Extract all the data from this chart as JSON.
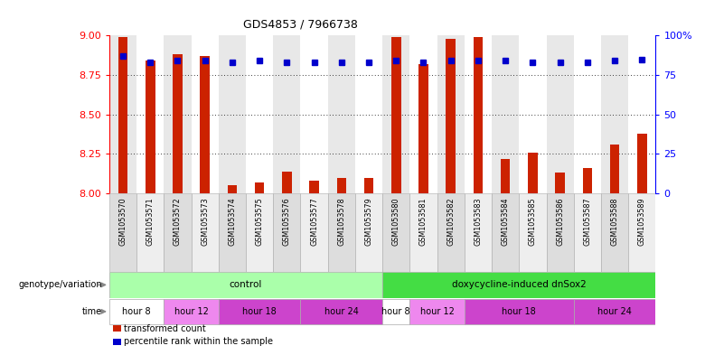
{
  "title": "GDS4853 / 7966738",
  "samples": [
    "GSM1053570",
    "GSM1053571",
    "GSM1053572",
    "GSM1053573",
    "GSM1053574",
    "GSM1053575",
    "GSM1053576",
    "GSM1053577",
    "GSM1053578",
    "GSM1053579",
    "GSM1053580",
    "GSM1053581",
    "GSM1053582",
    "GSM1053583",
    "GSM1053584",
    "GSM1053585",
    "GSM1053586",
    "GSM1053587",
    "GSM1053588",
    "GSM1053589"
  ],
  "transformed_count": [
    8.99,
    8.84,
    8.88,
    8.87,
    8.05,
    8.07,
    8.14,
    8.08,
    8.1,
    8.1,
    8.99,
    8.82,
    8.98,
    8.99,
    8.22,
    8.26,
    8.13,
    8.16,
    8.31,
    8.38
  ],
  "percentile_rank": [
    87,
    83,
    84,
    84,
    83,
    84,
    83,
    83,
    83,
    83,
    84,
    83,
    84,
    84,
    84,
    83,
    83,
    83,
    84,
    85
  ],
  "ylim_left": [
    8.0,
    9.0
  ],
  "ylim_right": [
    0,
    100
  ],
  "yticks_left": [
    8.0,
    8.25,
    8.5,
    8.75,
    9.0
  ],
  "yticks_right": [
    0,
    25,
    50,
    75,
    100
  ],
  "bar_color": "#CC2200",
  "dot_color": "#0000CC",
  "background_color": "#ffffff",
  "plot_bg_color": "#ffffff",
  "genotype_groups": [
    {
      "label": "control",
      "start": 0,
      "end": 9,
      "color": "#AAFFAA"
    },
    {
      "label": "doxycycline-induced dnSox2",
      "start": 10,
      "end": 19,
      "color": "#44DD44"
    }
  ],
  "time_bands": [
    {
      "label": "hour 8",
      "start": 0,
      "end": 1,
      "color": "#ffffff"
    },
    {
      "label": "hour 12",
      "start": 2,
      "end": 3,
      "color": "#EE88EE"
    },
    {
      "label": "hour 18",
      "start": 4,
      "end": 6,
      "color": "#CC44CC"
    },
    {
      "label": "hour 24",
      "start": 7,
      "end": 9,
      "color": "#CC44CC"
    },
    {
      "label": "hour 8",
      "start": 10,
      "end": 10,
      "color": "#ffffff"
    },
    {
      "label": "hour 12",
      "start": 11,
      "end": 12,
      "color": "#EE88EE"
    },
    {
      "label": "hour 18",
      "start": 13,
      "end": 16,
      "color": "#CC44CC"
    },
    {
      "label": "hour 24",
      "start": 17,
      "end": 19,
      "color": "#CC44CC"
    }
  ],
  "legend_items": [
    {
      "label": "transformed count",
      "color": "#CC2200"
    },
    {
      "label": "percentile rank within the sample",
      "color": "#0000CC"
    }
  ]
}
